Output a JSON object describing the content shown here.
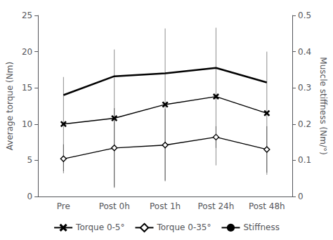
{
  "chart_data": {
    "type": "line",
    "categories": [
      "Pre",
      "Post 0h",
      "Post 1h",
      "Post 24h",
      "Post 48h"
    ],
    "series": [
      {
        "name": "Torque 0-5°",
        "values": [
          10.0,
          10.8,
          12.7,
          13.8,
          11.5
        ],
        "errors": [
          6.5,
          9.5,
          10.5,
          9.5,
          8.5
        ],
        "color": "#000000",
        "marker": "x",
        "line_style": "solid"
      },
      {
        "name": "Torque 0-35°",
        "values": [
          5.2,
          6.7,
          7.1,
          8.2,
          6.5
        ],
        "errors": [
          2.0,
          5.5,
          5.0,
          1.5,
          3.2
        ],
        "color": "#000000",
        "marker": "diamond",
        "line_style": "solid"
      },
      {
        "name": "Stiffness",
        "values": [
          0.28,
          0.332,
          0.34,
          0.355,
          0.315
        ],
        "axis": "y2",
        "color": "#000000",
        "line_style": "solid"
      }
    ],
    "ylabel": "Average torque (Nm)",
    "y2label": "Muscle stiffness (Nm/°)",
    "ylim": [
      0,
      25
    ],
    "yticks": [
      0,
      5,
      10,
      15,
      20,
      25
    ],
    "y2lim": [
      0,
      0.5
    ],
    "y2ticks": [
      0,
      0.1,
      0.2,
      0.3,
      0.4,
      0.5
    ],
    "grid": false,
    "legend": "bottom"
  }
}
